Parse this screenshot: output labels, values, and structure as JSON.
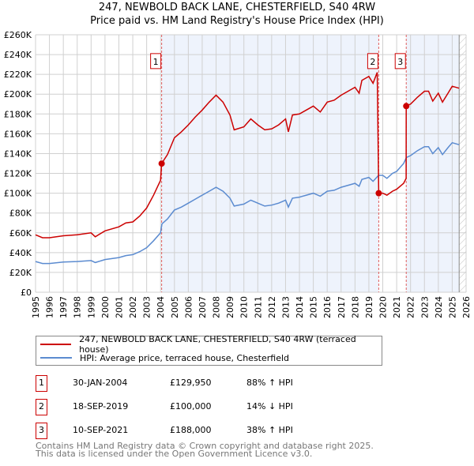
{
  "chart_data": {
    "type": "line",
    "title": "247, NEWBOLD BACK LANE, CHESTERFIELD, S40 4RW",
    "subtitle": "Price paid vs. HM Land Registry's House Price Index (HPI)",
    "xlim": [
      1995,
      2026
    ],
    "ylim": [
      0,
      260000
    ],
    "x_ticks": [
      "1995",
      "1996",
      "1997",
      "1998",
      "1999",
      "2000",
      "2001",
      "2002",
      "2003",
      "2004",
      "2005",
      "2006",
      "2007",
      "2008",
      "2009",
      "2010",
      "2011",
      "2012",
      "2013",
      "2014",
      "2015",
      "2016",
      "2017",
      "2018",
      "2019",
      "2020",
      "2021",
      "2022",
      "2023",
      "2024",
      "2025",
      "2026"
    ],
    "y_ticks": [
      {
        "v": 0,
        "l": "£0"
      },
      {
        "v": 20000,
        "l": "£20K"
      },
      {
        "v": 40000,
        "l": "£40K"
      },
      {
        "v": 60000,
        "l": "£60K"
      },
      {
        "v": 80000,
        "l": "£80K"
      },
      {
        "v": 100000,
        "l": "£100K"
      },
      {
        "v": 120000,
        "l": "£120K"
      },
      {
        "v": 140000,
        "l": "£140K"
      },
      {
        "v": 160000,
        "l": "£160K"
      },
      {
        "v": 180000,
        "l": "£180K"
      },
      {
        "v": 200000,
        "l": "£200K"
      },
      {
        "v": 220000,
        "l": "£220K"
      },
      {
        "v": 240000,
        "l": "£240K"
      },
      {
        "v": 260000,
        "l": "£260K"
      }
    ],
    "grid": true,
    "shaded_periods": [
      [
        2004.08,
        2019.71
      ],
      [
        2021.69,
        2025.5
      ]
    ],
    "hatched_from": 2025.5,
    "series": [
      {
        "name": "247, NEWBOLD BACK LANE, CHESTERFIELD, S40 4RW (terraced house)",
        "color": "#cc0000",
        "points": [
          [
            1995,
            58
          ],
          [
            1995.5,
            55
          ],
          [
            1996,
            55
          ],
          [
            1997,
            57
          ],
          [
            1998,
            58
          ],
          [
            1999,
            60
          ],
          [
            1999.3,
            56
          ],
          [
            2000,
            62
          ],
          [
            2001,
            66
          ],
          [
            2001.5,
            70
          ],
          [
            2002,
            71
          ],
          [
            2002.5,
            77
          ],
          [
            2003,
            85
          ],
          [
            2003.5,
            98
          ],
          [
            2004,
            113
          ],
          [
            2004.08,
            130
          ],
          [
            2004.5,
            139
          ],
          [
            2005,
            156
          ],
          [
            2005.5,
            162
          ],
          [
            2006,
            169
          ],
          [
            2006.5,
            177
          ],
          [
            2007,
            184
          ],
          [
            2007.5,
            192
          ],
          [
            2008,
            199
          ],
          [
            2008.5,
            192
          ],
          [
            2009,
            179
          ],
          [
            2009.3,
            164
          ],
          [
            2010,
            167
          ],
          [
            2010.5,
            175
          ],
          [
            2011,
            169
          ],
          [
            2011.5,
            164
          ],
          [
            2012,
            165
          ],
          [
            2012.5,
            169
          ],
          [
            2013,
            175
          ],
          [
            2013.2,
            162
          ],
          [
            2013.5,
            179
          ],
          [
            2014,
            180
          ],
          [
            2014.5,
            184
          ],
          [
            2015,
            188
          ],
          [
            2015.5,
            182
          ],
          [
            2016,
            192
          ],
          [
            2016.5,
            194
          ],
          [
            2017,
            199
          ],
          [
            2017.5,
            203
          ],
          [
            2018,
            207
          ],
          [
            2018.3,
            201
          ],
          [
            2018.5,
            214
          ],
          [
            2019,
            218
          ],
          [
            2019.3,
            211
          ],
          [
            2019.6,
            222
          ],
          [
            2019.71,
            100
          ],
          [
            2020,
            100
          ],
          [
            2020.3,
            98
          ],
          [
            2020.7,
            102
          ],
          [
            2021,
            104
          ],
          [
            2021.5,
            110
          ],
          [
            2021.68,
            115
          ],
          [
            2021.69,
            188
          ],
          [
            2022,
            190
          ],
          [
            2022.5,
            197
          ],
          [
            2023,
            203
          ],
          [
            2023.3,
            203
          ],
          [
            2023.6,
            193
          ],
          [
            2024,
            201
          ],
          [
            2024.3,
            192
          ],
          [
            2024.7,
            201
          ],
          [
            2025,
            208
          ],
          [
            2025.5,
            206
          ]
        ]
      },
      {
        "name": "HPI: Average price, terraced house, Chesterfield",
        "color": "#5b8bd0",
        "points": [
          [
            1995,
            31
          ],
          [
            1995.5,
            29
          ],
          [
            1996,
            29
          ],
          [
            1997,
            30.5
          ],
          [
            1998,
            31
          ],
          [
            1999,
            32
          ],
          [
            1999.3,
            30
          ],
          [
            2000,
            33
          ],
          [
            2001,
            35
          ],
          [
            2001.5,
            37
          ],
          [
            2002,
            38
          ],
          [
            2002.5,
            41
          ],
          [
            2003,
            45
          ],
          [
            2003.5,
            52
          ],
          [
            2004,
            60
          ],
          [
            2004.1,
            69
          ],
          [
            2004.5,
            74
          ],
          [
            2005,
            83
          ],
          [
            2005.5,
            86
          ],
          [
            2006,
            90
          ],
          [
            2006.5,
            94
          ],
          [
            2007,
            98
          ],
          [
            2007.5,
            102
          ],
          [
            2008,
            106
          ],
          [
            2008.5,
            102
          ],
          [
            2009,
            95
          ],
          [
            2009.3,
            87
          ],
          [
            2010,
            89
          ],
          [
            2010.5,
            93
          ],
          [
            2011,
            90
          ],
          [
            2011.5,
            87
          ],
          [
            2012,
            88
          ],
          [
            2012.5,
            90
          ],
          [
            2013,
            93
          ],
          [
            2013.2,
            86
          ],
          [
            2013.5,
            95
          ],
          [
            2014,
            96
          ],
          [
            2014.5,
            98
          ],
          [
            2015,
            100
          ],
          [
            2015.5,
            97
          ],
          [
            2016,
            102
          ],
          [
            2016.5,
            103
          ],
          [
            2017,
            106
          ],
          [
            2017.5,
            108
          ],
          [
            2018,
            110
          ],
          [
            2018.3,
            107
          ],
          [
            2018.5,
            114
          ],
          [
            2019,
            116
          ],
          [
            2019.3,
            112
          ],
          [
            2019.7,
            118
          ],
          [
            2020,
            118
          ],
          [
            2020.3,
            115
          ],
          [
            2020.7,
            120
          ],
          [
            2021,
            122
          ],
          [
            2021.5,
            130
          ],
          [
            2021.7,
            136
          ],
          [
            2022,
            138
          ],
          [
            2022.5,
            143
          ],
          [
            2023,
            147
          ],
          [
            2023.3,
            147
          ],
          [
            2023.6,
            140
          ],
          [
            2024,
            146
          ],
          [
            2024.3,
            139
          ],
          [
            2024.7,
            146
          ],
          [
            2025,
            151
          ],
          [
            2025.5,
            149
          ]
        ]
      }
    ],
    "sales": [
      {
        "label": "1",
        "x": 2004.08,
        "y": 129950
      },
      {
        "label": "2",
        "x": 2019.71,
        "y": 100000
      },
      {
        "label": "3",
        "x": 2021.69,
        "y": 188000
      }
    ],
    "marker_label_y": 233000
  },
  "legend": {
    "property": "247, NEWBOLD BACK LANE, CHESTERFIELD, S40 4RW (terraced house)",
    "hpi": "HPI: Average price, terraced house, Chesterfield"
  },
  "transactions": [
    {
      "num": "1",
      "date": "30-JAN-2004",
      "price": "£129,950",
      "hpi": "88% ↑ HPI"
    },
    {
      "num": "2",
      "date": "18-SEP-2019",
      "price": "£100,000",
      "hpi": "14% ↓ HPI"
    },
    {
      "num": "3",
      "date": "10-SEP-2021",
      "price": "£188,000",
      "hpi": "38% ↑ HPI"
    }
  ],
  "footer": {
    "line1": "Contains HM Land Registry data © Crown copyright and database right 2025.",
    "line2": "This data is licensed under the Open Government Licence v3.0."
  }
}
